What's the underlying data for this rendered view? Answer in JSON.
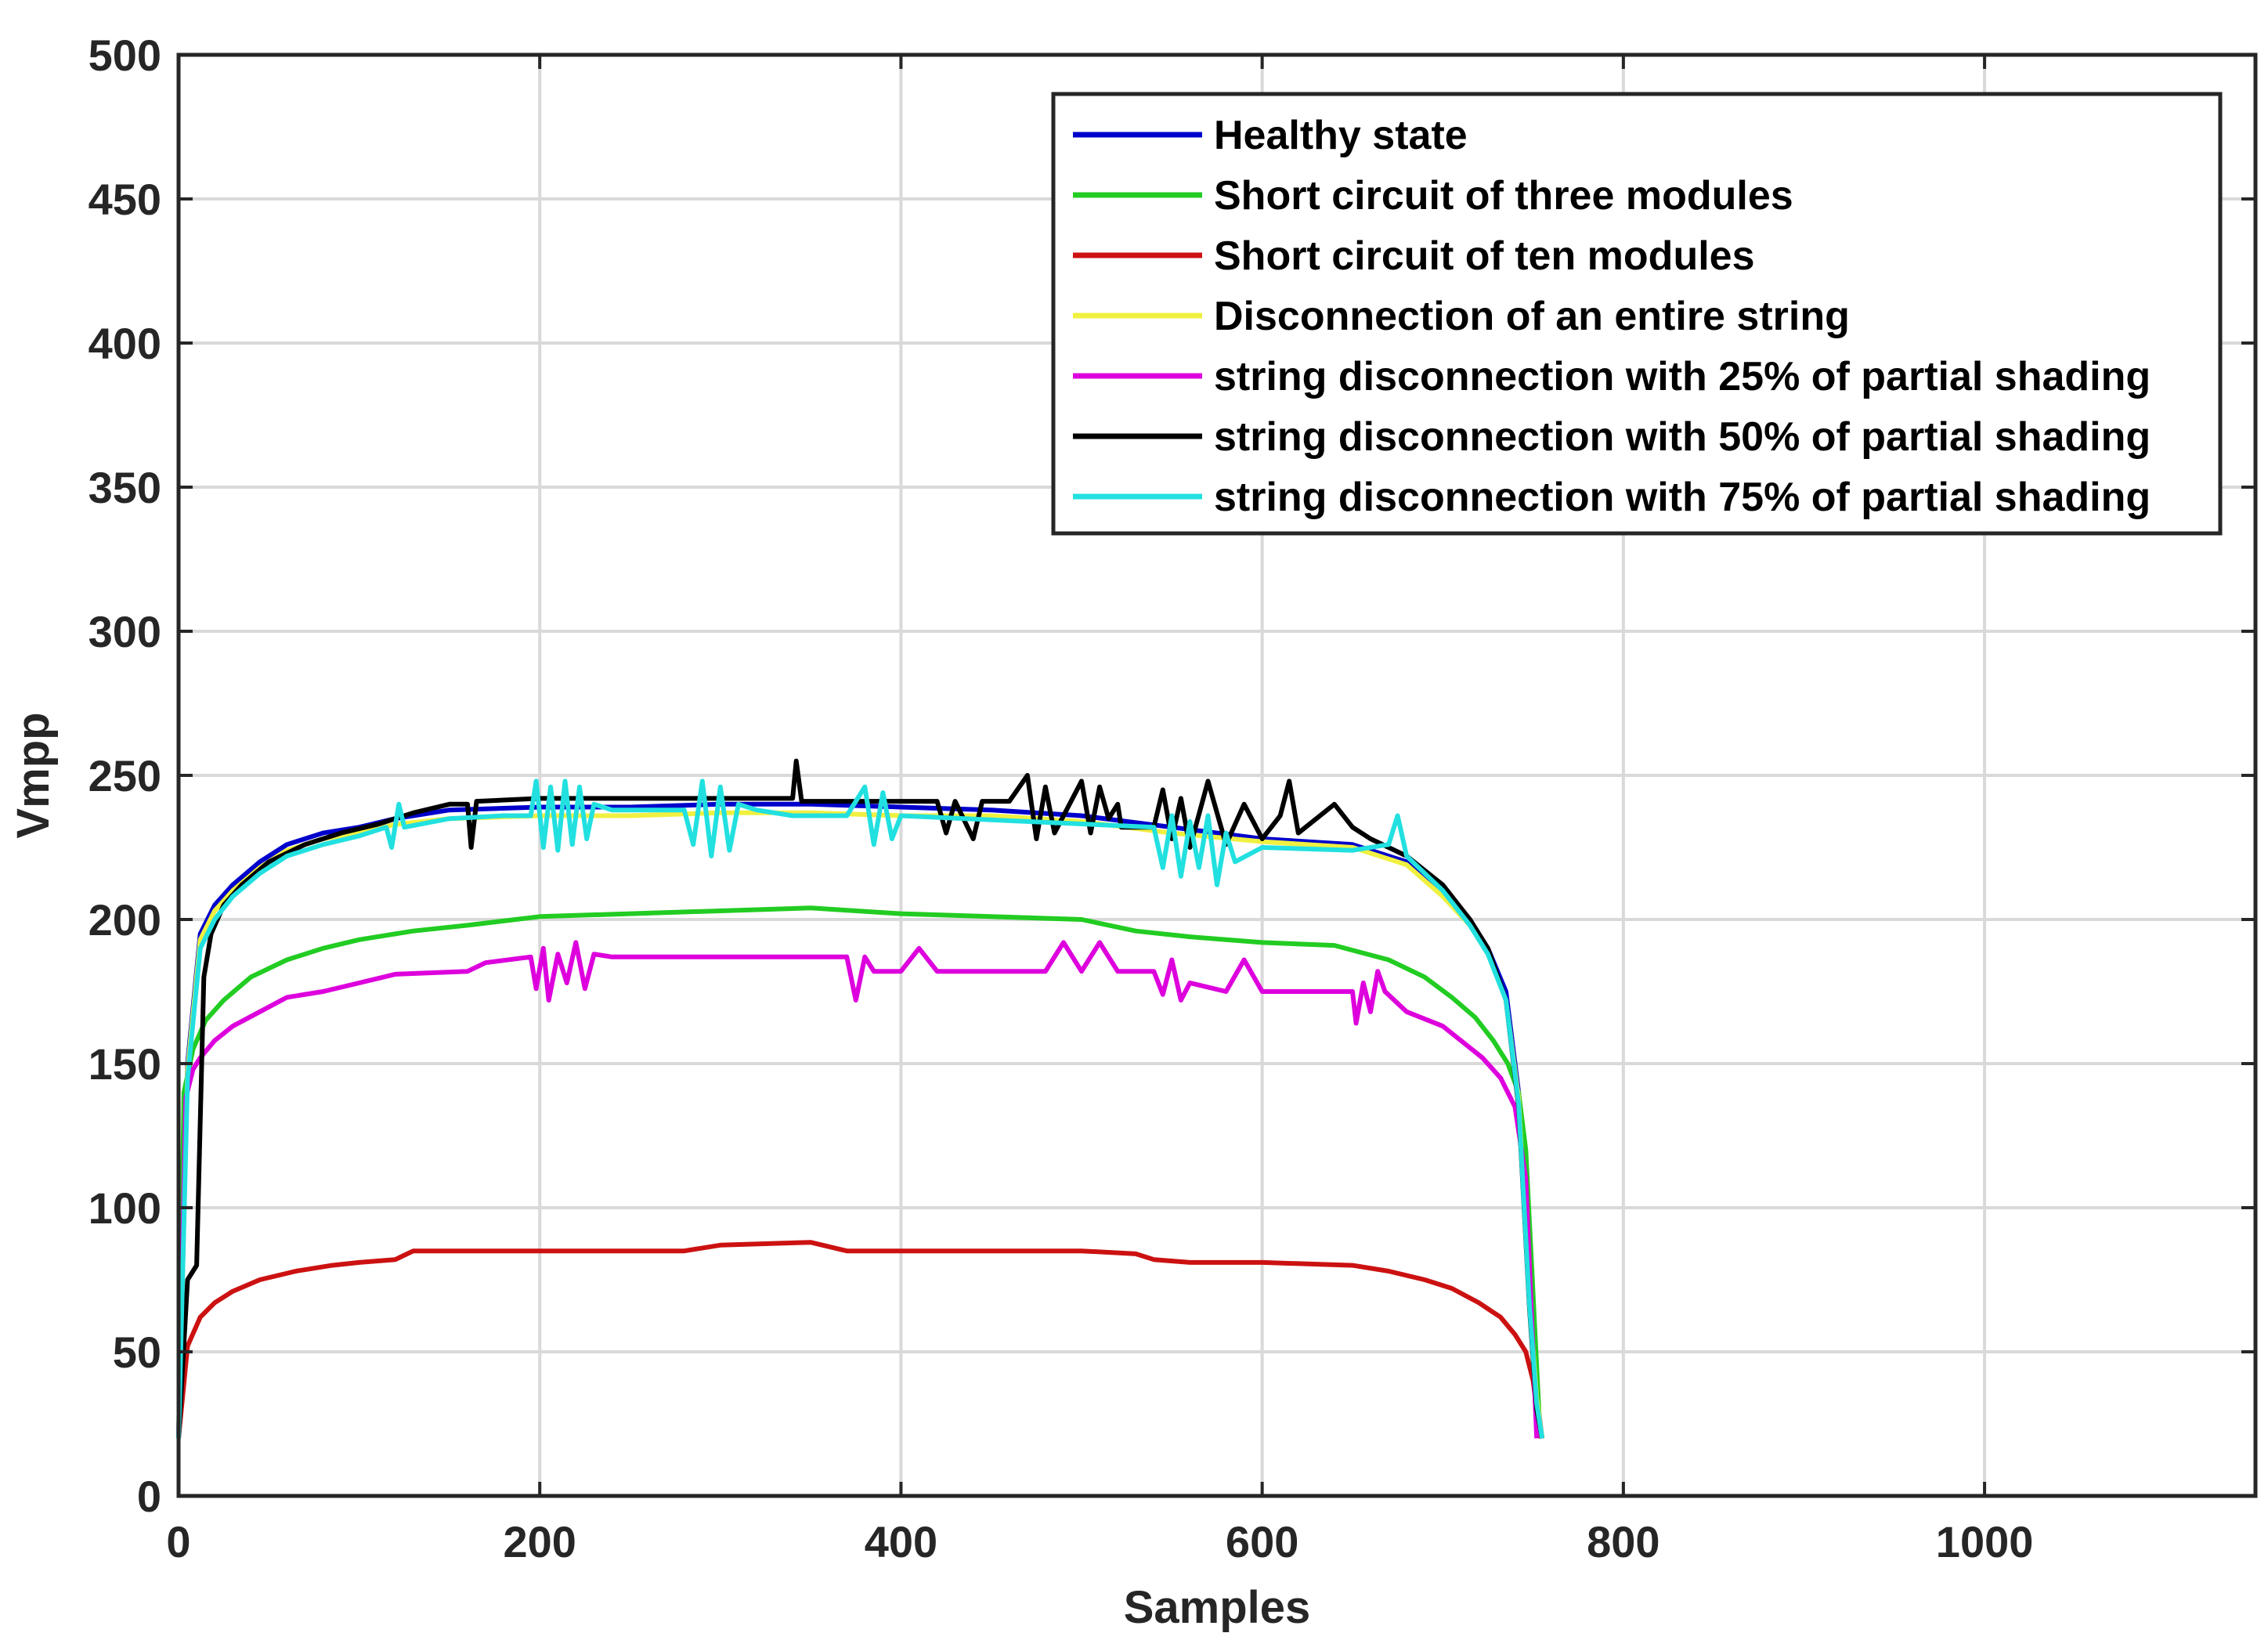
{
  "chart_data": {
    "type": "line",
    "xlabel": "Samples",
    "ylabel": "Vmpp",
    "xlim": [
      0,
      1150
    ],
    "ylim": [
      0,
      500
    ],
    "xticks": [
      0,
      200,
      400,
      600,
      800,
      1000
    ],
    "yticks": [
      0,
      50,
      100,
      150,
      200,
      250,
      300,
      350,
      400,
      450,
      500
    ],
    "grid": true,
    "legend_position": "top-right",
    "series": [
      {
        "name": "Healthy state",
        "color": "#0000cc",
        "x": [
          0,
          5,
          12,
          20,
          30,
          45,
          60,
          80,
          100,
          120,
          150,
          200,
          250,
          300,
          350,
          400,
          450,
          500,
          550,
          600,
          650,
          680,
          700,
          715,
          725,
          735,
          742,
          748,
          752,
          755
        ],
        "y": [
          20,
          150,
          195,
          205,
          212,
          220,
          226,
          230,
          232,
          235,
          238,
          239,
          239,
          240,
          240,
          239,
          238,
          236,
          232,
          228,
          226,
          220,
          210,
          200,
          190,
          175,
          140,
          70,
          35,
          20
        ]
      },
      {
        "name": "Short circuit of three modules",
        "color": "#22cc22",
        "x": [
          0,
          3,
          8,
          15,
          25,
          40,
          60,
          80,
          100,
          130,
          160,
          200,
          250,
          300,
          350,
          400,
          450,
          500,
          530,
          560,
          600,
          640,
          670,
          690,
          705,
          718,
          728,
          736,
          742,
          746,
          750,
          754
        ],
        "y": [
          20,
          140,
          155,
          165,
          172,
          180,
          186,
          190,
          193,
          196,
          198,
          201,
          202,
          203,
          204,
          202,
          201,
          200,
          196,
          194,
          192,
          191,
          186,
          180,
          173,
          166,
          158,
          150,
          140,
          120,
          70,
          20
        ]
      },
      {
        "name": "Short circuit of ten modules",
        "color": "#cc1111",
        "x": [
          0,
          5,
          12,
          20,
          30,
          45,
          65,
          85,
          100,
          120,
          130,
          200,
          280,
          300,
          350,
          370,
          400,
          500,
          530,
          540,
          560,
          600,
          650,
          670,
          690,
          705,
          720,
          732,
          740,
          746,
          750,
          754
        ],
        "y": [
          20,
          52,
          62,
          67,
          71,
          75,
          78,
          80,
          81,
          82,
          85,
          85,
          85,
          87,
          88,
          85,
          85,
          85,
          84,
          82,
          81,
          81,
          80,
          78,
          75,
          72,
          67,
          62,
          56,
          50,
          40,
          20
        ]
      },
      {
        "name": "Disconnection of an entire string",
        "color": "#f0f040",
        "x": [
          0,
          5,
          12,
          20,
          30,
          45,
          60,
          80,
          100,
          120,
          150,
          200,
          250,
          300,
          350,
          400,
          450,
          500,
          550,
          600,
          650,
          680,
          700,
          715,
          725,
          735,
          742,
          748,
          752,
          755
        ],
        "y": [
          20,
          148,
          193,
          203,
          210,
          218,
          224,
          228,
          230,
          233,
          235,
          236,
          236,
          237,
          237,
          236,
          236,
          234,
          230,
          227,
          225,
          219,
          208,
          198,
          188,
          172,
          138,
          68,
          34,
          20
        ]
      },
      {
        "name": "string disconnection with 25% of partial shading",
        "color": "#dd00dd",
        "x": [
          0,
          4,
          8,
          12,
          20,
          30,
          45,
          60,
          80,
          100,
          120,
          160,
          170,
          195,
          198,
          202,
          205,
          210,
          215,
          220,
          225,
          230,
          240,
          260,
          300,
          370,
          375,
          380,
          385,
          400,
          410,
          420,
          480,
          490,
          500,
          510,
          520,
          540,
          545,
          550,
          555,
          560,
          580,
          590,
          600,
          650,
          652,
          656,
          660,
          664,
          668,
          680,
          700,
          712,
          722,
          732,
          740,
          746,
          752
        ],
        "y": [
          20,
          138,
          148,
          152,
          158,
          163,
          168,
          173,
          175,
          178,
          181,
          182,
          185,
          187,
          176,
          190,
          172,
          188,
          178,
          192,
          176,
          188,
          187,
          187,
          187,
          187,
          172,
          187,
          182,
          182,
          190,
          182,
          182,
          192,
          182,
          192,
          182,
          182,
          174,
          186,
          172,
          178,
          175,
          186,
          175,
          175,
          164,
          178,
          168,
          182,
          175,
          168,
          163,
          157,
          152,
          145,
          135,
          110,
          20
        ]
      },
      {
        "name": "string disconnection with 50% of partial shading",
        "color": "#000000",
        "x": [
          0,
          5,
          10,
          14,
          18,
          25,
          35,
          50,
          70,
          90,
          110,
          130,
          150,
          160,
          162,
          165,
          200,
          280,
          340,
          342,
          345,
          420,
          425,
          430,
          440,
          445,
          460,
          470,
          475,
          480,
          485,
          500,
          505,
          510,
          515,
          520,
          522,
          540,
          545,
          550,
          555,
          560,
          570,
          580,
          590,
          600,
          610,
          615,
          620,
          640,
          650,
          660,
          680,
          700,
          715,
          725,
          735,
          742,
          748,
          752,
          755
        ],
        "y": [
          20,
          75,
          80,
          180,
          195,
          205,
          212,
          220,
          226,
          230,
          233,
          237,
          240,
          240,
          225,
          241,
          242,
          242,
          242,
          255,
          241,
          241,
          230,
          241,
          228,
          241,
          241,
          250,
          228,
          246,
          230,
          248,
          230,
          246,
          235,
          240,
          232,
          232,
          245,
          228,
          242,
          225,
          248,
          226,
          240,
          228,
          236,
          248,
          230,
          240,
          232,
          228,
          222,
          212,
          200,
          190,
          172,
          135,
          65,
          30,
          20
        ]
      },
      {
        "name": "string disconnection with 75% of partial shading",
        "color": "#22e0e0",
        "x": [
          0,
          5,
          12,
          20,
          30,
          45,
          60,
          80,
          100,
          115,
          118,
          122,
          125,
          150,
          180,
          195,
          198,
          202,
          206,
          210,
          214,
          218,
          222,
          226,
          230,
          240,
          280,
          285,
          290,
          295,
          300,
          305,
          310,
          320,
          340,
          370,
          380,
          385,
          390,
          395,
          400,
          540,
          545,
          550,
          555,
          560,
          565,
          570,
          575,
          580,
          585,
          600,
          650,
          670,
          675,
          680,
          700,
          715,
          725,
          735,
          742,
          748,
          752,
          755
        ],
        "y": [
          20,
          145,
          190,
          200,
          208,
          216,
          222,
          226,
          229,
          232,
          225,
          240,
          232,
          235,
          236,
          236,
          248,
          225,
          246,
          224,
          248,
          226,
          246,
          228,
          240,
          238,
          238,
          226,
          248,
          222,
          246,
          224,
          240,
          238,
          236,
          236,
          246,
          226,
          244,
          228,
          236,
          232,
          218,
          236,
          215,
          234,
          218,
          236,
          212,
          230,
          220,
          225,
          224,
          226,
          236,
          222,
          210,
          198,
          188,
          172,
          136,
          66,
          32,
          20
        ]
      }
    ]
  }
}
